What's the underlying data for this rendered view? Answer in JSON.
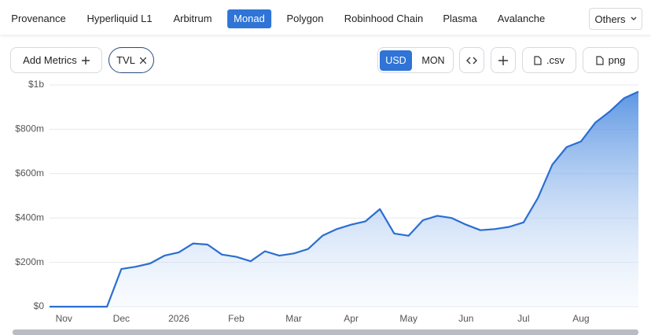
{
  "tabs": [
    "Provenance",
    "Hyperliquid L1",
    "Arbitrum",
    "Monad",
    "Polygon",
    "Robinhood Chain",
    "Plasma",
    "Avalanche"
  ],
  "others": "Others",
  "add_metrics": "Add Metrics",
  "metric_chip": "TVL",
  "currency_toggle": [
    "USD",
    "MON"
  ],
  "export_buttons": [
    ".csv",
    "png"
  ],
  "chart_data": {
    "type": "area",
    "color": "#2a6ed2",
    "grid": true,
    "categories": [
      null,
      "Nov",
      null,
      null,
      null,
      "Dec",
      null,
      null,
      null,
      "2026",
      null,
      null,
      null,
      "Feb",
      null,
      null,
      null,
      "Mar",
      null,
      null,
      null,
      "Apr",
      null,
      null,
      null,
      "May",
      null,
      null,
      null,
      "Jun",
      null,
      null,
      null,
      "Jul",
      null,
      null,
      null,
      "Aug",
      null,
      null,
      null,
      null
    ],
    "values": [
      0,
      0,
      0,
      0,
      0,
      170000000,
      180000000,
      195000000,
      230000000,
      245000000,
      285000000,
      280000000,
      235000000,
      225000000,
      205000000,
      250000000,
      230000000,
      240000000,
      260000000,
      320000000,
      350000000,
      370000000,
      385000000,
      440000000,
      330000000,
      320000000,
      390000000,
      410000000,
      400000000,
      370000000,
      345000000,
      350000000,
      360000000,
      380000000,
      490000000,
      640000000,
      720000000,
      745000000,
      830000000,
      880000000,
      940000000,
      970000000
    ],
    "ylim": [
      0,
      1000000000
    ],
    "yticks": [
      {
        "value": 0,
        "label": "$0"
      },
      {
        "value": 200000000,
        "label": "$200m"
      },
      {
        "value": 400000000,
        "label": "$400m"
      },
      {
        "value": 600000000,
        "label": "$600m"
      },
      {
        "value": 800000000,
        "label": "$800m"
      },
      {
        "value": 1000000000,
        "label": "$1b"
      }
    ]
  }
}
